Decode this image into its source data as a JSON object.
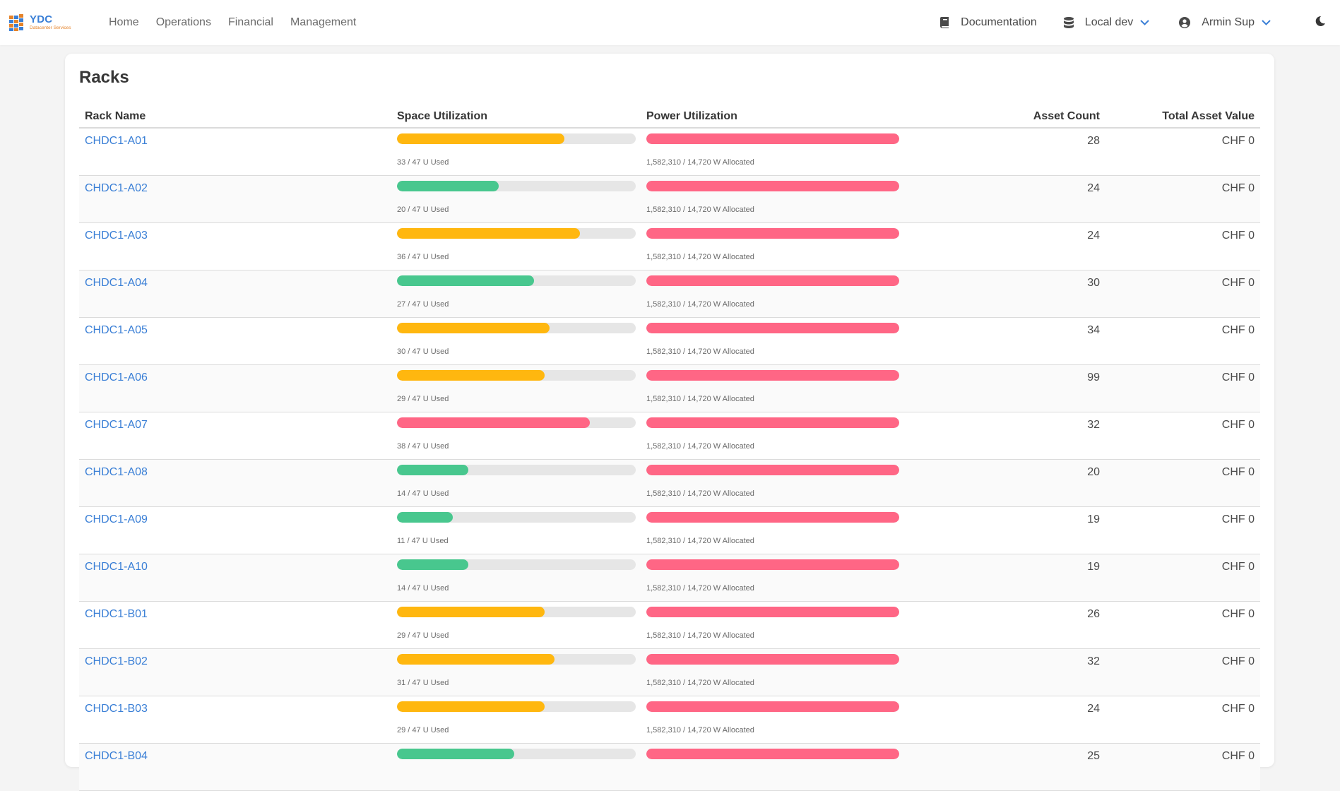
{
  "brand": {
    "name": "YDC",
    "subtitle": "Datacenter Services"
  },
  "nav": {
    "left": [
      "Home",
      "Operations",
      "Financial",
      "Management"
    ],
    "docs_label": "Documentation",
    "env_label": "Local dev",
    "user_label": "Armin Sup"
  },
  "colors": {
    "link": "#3a7fd6",
    "ok": "#48c78e",
    "warn": "#ffb70f",
    "danger": "#ff6685",
    "track": "#e6e6e6"
  },
  "page": {
    "title": "Racks"
  },
  "table": {
    "headers": {
      "name": "Rack Name",
      "space": "Space Utilization",
      "power": "Power Utilization",
      "count": "Asset Count",
      "value": "Total Asset Value"
    },
    "rows": [
      {
        "name": "CHDC1-A01",
        "space_text": "33 / 47 U Used",
        "space_pct": 70.2,
        "space_status": "warn",
        "power_text": "1,582,310 / 14,720 W Allocated",
        "power_pct": 100,
        "count": "28",
        "value": "CHF 0"
      },
      {
        "name": "CHDC1-A02",
        "space_text": "20 / 47 U Used",
        "space_pct": 42.6,
        "space_status": "ok",
        "power_text": "1,582,310 / 14,720 W Allocated",
        "power_pct": 100,
        "count": "24",
        "value": "CHF 0"
      },
      {
        "name": "CHDC1-A03",
        "space_text": "36 / 47 U Used",
        "space_pct": 76.6,
        "space_status": "warn",
        "power_text": "1,582,310 / 14,720 W Allocated",
        "power_pct": 100,
        "count": "24",
        "value": "CHF 0"
      },
      {
        "name": "CHDC1-A04",
        "space_text": "27 / 47 U Used",
        "space_pct": 57.4,
        "space_status": "ok",
        "power_text": "1,582,310 / 14,720 W Allocated",
        "power_pct": 100,
        "count": "30",
        "value": "CHF 0"
      },
      {
        "name": "CHDC1-A05",
        "space_text": "30 / 47 U Used",
        "space_pct": 63.8,
        "space_status": "warn",
        "power_text": "1,582,310 / 14,720 W Allocated",
        "power_pct": 100,
        "count": "34",
        "value": "CHF 0"
      },
      {
        "name": "CHDC1-A06",
        "space_text": "29 / 47 U Used",
        "space_pct": 61.7,
        "space_status": "warn",
        "power_text": "1,582,310 / 14,720 W Allocated",
        "power_pct": 100,
        "count": "99",
        "value": "CHF 0"
      },
      {
        "name": "CHDC1-A07",
        "space_text": "38 / 47 U Used",
        "space_pct": 80.9,
        "space_status": "danger",
        "power_text": "1,582,310 / 14,720 W Allocated",
        "power_pct": 100,
        "count": "32",
        "value": "CHF 0"
      },
      {
        "name": "CHDC1-A08",
        "space_text": "14 / 47 U Used",
        "space_pct": 29.8,
        "space_status": "ok",
        "power_text": "1,582,310 / 14,720 W Allocated",
        "power_pct": 100,
        "count": "20",
        "value": "CHF 0"
      },
      {
        "name": "CHDC1-A09",
        "space_text": "11 / 47 U Used",
        "space_pct": 23.4,
        "space_status": "ok",
        "power_text": "1,582,310 / 14,720 W Allocated",
        "power_pct": 100,
        "count": "19",
        "value": "CHF 0"
      },
      {
        "name": "CHDC1-A10",
        "space_text": "14 / 47 U Used",
        "space_pct": 29.8,
        "space_status": "ok",
        "power_text": "1,582,310 / 14,720 W Allocated",
        "power_pct": 100,
        "count": "19",
        "value": "CHF 0"
      },
      {
        "name": "CHDC1-B01",
        "space_text": "29 / 47 U Used",
        "space_pct": 61.7,
        "space_status": "warn",
        "power_text": "1,582,310 / 14,720 W Allocated",
        "power_pct": 100,
        "count": "26",
        "value": "CHF 0"
      },
      {
        "name": "CHDC1-B02",
        "space_text": "31 / 47 U Used",
        "space_pct": 66.0,
        "space_status": "warn",
        "power_text": "1,582,310 / 14,720 W Allocated",
        "power_pct": 100,
        "count": "32",
        "value": "CHF 0"
      },
      {
        "name": "CHDC1-B03",
        "space_text": "29 / 47 U Used",
        "space_pct": 61.7,
        "space_status": "warn",
        "power_text": "1,582,310 / 14,720 W Allocated",
        "power_pct": 100,
        "count": "24",
        "value": "CHF 0"
      },
      {
        "name": "CHDC1-B04",
        "space_text": "",
        "space_pct": 49.0,
        "space_status": "ok",
        "power_text": "",
        "power_pct": 100,
        "count": "25",
        "value": "CHF 0"
      }
    ]
  }
}
